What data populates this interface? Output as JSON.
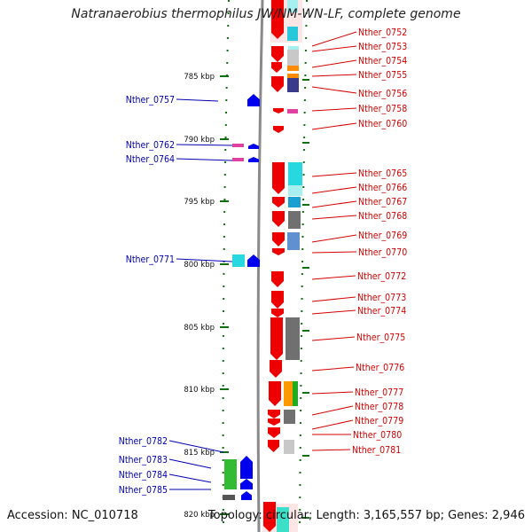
{
  "title": "Natranaerobius thermophilus JW/NM-WN-LF, complete genome",
  "footer": {
    "accession": "Accession: NC_010718",
    "summary": "Topology: circular; Length: 3,165,557 bp; Genes: 2,946"
  },
  "colors": {
    "right_label": "#d40000",
    "left_label": "#0000b0",
    "forward_strand": "#0000ee",
    "reverse_strand": "#ee0000",
    "tick": "#107010",
    "backbone": "#8a8a8a"
  },
  "kbp_ticks": [
    "785 kbp",
    "790 kbp",
    "795 kbp",
    "800 kbp",
    "805 kbp",
    "810 kbp",
    "815 kbp",
    "820 kbp"
  ],
  "left_labels": [
    "Nther_0757",
    "Nther_0762",
    "Nther_0764",
    "Nther_0771",
    "Nther_0782",
    "Nther_0783",
    "Nther_0784",
    "Nther_0785"
  ],
  "right_labels": [
    "Nther_0752",
    "Nther_0753",
    "Nther_0754",
    "Nther_0755",
    "Nther_0756",
    "Nther_0758",
    "Nther_0760",
    "Nther_0765",
    "Nther_0766",
    "Nther_0767",
    "Nther_0768",
    "Nther_0769",
    "Nther_0770",
    "Nther_0772",
    "Nther_0773",
    "Nther_0774",
    "Nther_0775",
    "Nther_0776",
    "Nther_0777",
    "Nther_0778",
    "Nther_0779",
    "Nther_0780",
    "Nther_0781"
  ]
}
